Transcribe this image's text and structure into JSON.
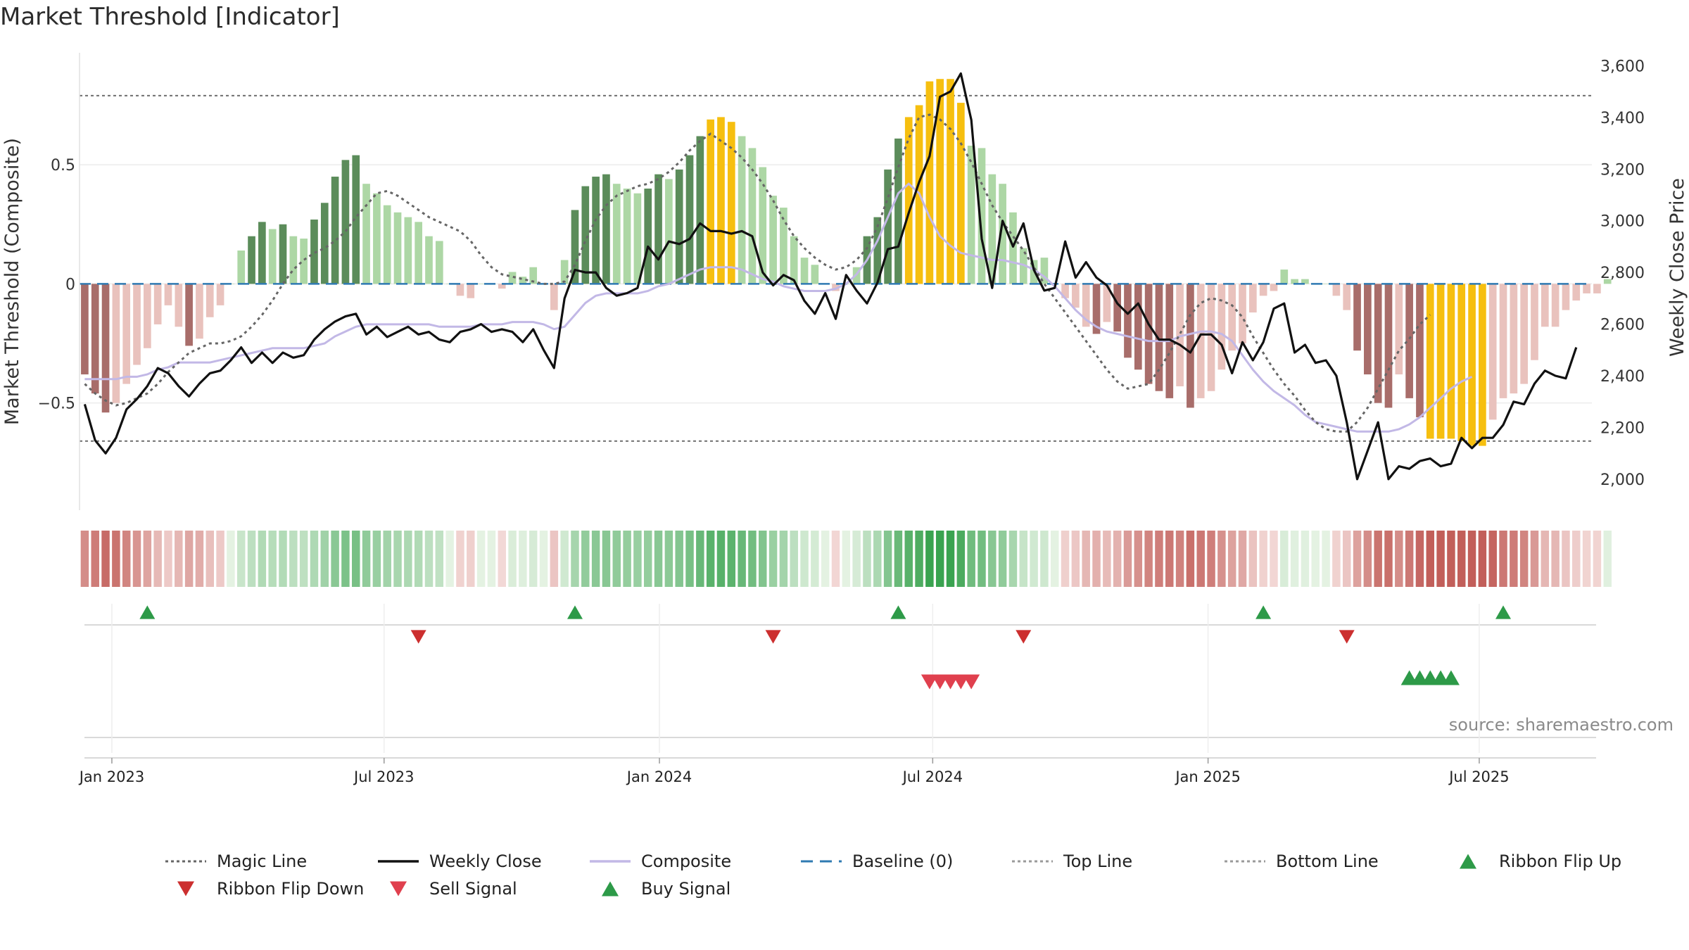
{
  "chart_data": {
    "type": "bar",
    "title": "Market Threshold [Indicator]",
    "ylabel_left": "Market Threshold (Composite)",
    "ylabel_right": "Weekly Close Price",
    "source": "source: sharemaestro.com",
    "xlim_weeks": [
      0.5,
      145.5
    ],
    "ylim_left": [
      -0.95,
      0.97
    ],
    "ylim_right": [
      1880,
      3650
    ],
    "y_left_ticks": [
      {
        "v": 0.5,
        "label": "0.5"
      },
      {
        "v": 0,
        "label": "0"
      },
      {
        "v": -0.5,
        "label": "−0.5"
      }
    ],
    "y_right_ticks": [
      {
        "v": 3600,
        "label": "3,600"
      },
      {
        "v": 3400,
        "label": "3,400"
      },
      {
        "v": 3200,
        "label": "3,200"
      },
      {
        "v": 3000,
        "label": "3,000"
      },
      {
        "v": 2800,
        "label": "2,800"
      },
      {
        "v": 2600,
        "label": "2,600"
      },
      {
        "v": 2400,
        "label": "2,400"
      },
      {
        "v": 2200,
        "label": "2,200"
      },
      {
        "v": 2000,
        "label": "2,000"
      }
    ],
    "x_ticks": [
      {
        "w": 3.6,
        "label": "Jan 2023"
      },
      {
        "w": 29.7,
        "label": "Jul 2023"
      },
      {
        "w": 56.1,
        "label": "Jan 2024"
      },
      {
        "w": 82.3,
        "label": "Jul 2024"
      },
      {
        "w": 108.7,
        "label": "Jan 2025"
      },
      {
        "w": 134.7,
        "label": "Jul 2025"
      }
    ],
    "top_line": 0.79,
    "bottom_line": -0.66,
    "baseline": 0,
    "composite": [
      -0.4,
      -0.4,
      -0.4,
      -0.4,
      -0.39,
      -0.39,
      -0.38,
      -0.36,
      -0.35,
      -0.33,
      -0.33,
      -0.33,
      -0.33,
      -0.32,
      -0.31,
      -0.3,
      -0.29,
      -0.28,
      -0.27,
      -0.27,
      -0.27,
      -0.27,
      -0.26,
      -0.25,
      -0.22,
      -0.2,
      -0.18,
      -0.17,
      -0.17,
      -0.17,
      -0.17,
      -0.17,
      -0.17,
      -0.17,
      -0.18,
      -0.18,
      -0.18,
      -0.18,
      -0.17,
      -0.17,
      -0.17,
      -0.16,
      -0.16,
      -0.16,
      -0.17,
      -0.19,
      -0.18,
      -0.13,
      -0.08,
      -0.05,
      -0.04,
      -0.04,
      -0.04,
      -0.04,
      -0.03,
      -0.01,
      0.0,
      0.02,
      0.04,
      0.06,
      0.07,
      0.07,
      0.07,
      0.06,
      0.04,
      0.02,
      0.01,
      -0.01,
      -0.02,
      -0.03,
      -0.03,
      -0.03,
      -0.02,
      0.0,
      0.04,
      0.1,
      0.18,
      0.28,
      0.38,
      0.42,
      0.38,
      0.28,
      0.2,
      0.16,
      0.13,
      0.12,
      0.11,
      0.1,
      0.1,
      0.09,
      0.08,
      0.06,
      0.03,
      -0.01,
      -0.06,
      -0.11,
      -0.15,
      -0.18,
      -0.2,
      -0.21,
      -0.22,
      -0.23,
      -0.24,
      -0.24,
      -0.24,
      -0.22,
      -0.21,
      -0.2,
      -0.2,
      -0.21,
      -0.24,
      -0.3,
      -0.36,
      -0.41,
      -0.45,
      -0.48,
      -0.51,
      -0.55,
      -0.58,
      -0.59,
      -0.6,
      -0.61,
      -0.62,
      -0.62,
      -0.62,
      -0.62,
      -0.61,
      -0.59,
      -0.56,
      -0.52,
      -0.48,
      -0.44,
      -0.41,
      -0.39
    ],
    "magic_line": [
      -0.42,
      -0.46,
      -0.49,
      -0.51,
      -0.5,
      -0.48,
      -0.46,
      -0.42,
      -0.37,
      -0.33,
      -0.29,
      -0.27,
      -0.25,
      -0.25,
      -0.24,
      -0.22,
      -0.18,
      -0.13,
      -0.07,
      0.0,
      0.06,
      0.1,
      0.13,
      0.15,
      0.18,
      0.22,
      0.28,
      0.33,
      0.38,
      0.39,
      0.37,
      0.34,
      0.31,
      0.28,
      0.26,
      0.24,
      0.22,
      0.18,
      0.12,
      0.07,
      0.04,
      0.03,
      0.02,
      0.01,
      0.0,
      0.0,
      0.01,
      0.08,
      0.18,
      0.27,
      0.33,
      0.37,
      0.39,
      0.41,
      0.42,
      0.44,
      0.47,
      0.51,
      0.56,
      0.6,
      0.63,
      0.6,
      0.57,
      0.53,
      0.48,
      0.42,
      0.35,
      0.27,
      0.2,
      0.15,
      0.11,
      0.08,
      0.06,
      0.07,
      0.1,
      0.15,
      0.24,
      0.36,
      0.49,
      0.61,
      0.7,
      0.71,
      0.69,
      0.65,
      0.59,
      0.51,
      0.42,
      0.33,
      0.26,
      0.2,
      0.14,
      0.07,
      0.0,
      -0.06,
      -0.12,
      -0.18,
      -0.24,
      -0.3,
      -0.36,
      -0.41,
      -0.44,
      -0.43,
      -0.42,
      -0.36,
      -0.29,
      -0.21,
      -0.13,
      -0.08,
      -0.06,
      -0.07,
      -0.09,
      -0.14,
      -0.22,
      -0.29,
      -0.36,
      -0.42,
      -0.47,
      -0.53,
      -0.58,
      -0.61,
      -0.62,
      -0.62,
      -0.58,
      -0.52,
      -0.44,
      -0.36,
      -0.28,
      -0.23,
      -0.17,
      -0.13
    ],
    "weekly_close": [
      2290,
      2150,
      2100,
      2160,
      2270,
      2310,
      2360,
      2430,
      2410,
      2360,
      2320,
      2370,
      2410,
      2420,
      2460,
      2510,
      2450,
      2490,
      2450,
      2490,
      2470,
      2480,
      2540,
      2580,
      2610,
      2630,
      2640,
      2560,
      2590,
      2550,
      2570,
      2590,
      2560,
      2570,
      2540,
      2530,
      2570,
      2580,
      2600,
      2570,
      2580,
      2570,
      2530,
      2580,
      2500,
      2430,
      2700,
      2810,
      2800,
      2800,
      2740,
      2710,
      2720,
      2740,
      2900,
      2850,
      2920,
      2910,
      2930,
      2990,
      2960,
      2960,
      2950,
      2960,
      2940,
      2800,
      2750,
      2790,
      2770,
      2690,
      2640,
      2720,
      2620,
      2790,
      2730,
      2680,
      2760,
      2890,
      2900,
      3030,
      3150,
      3250,
      3480,
      3500,
      3570,
      3390,
      2930,
      2740,
      3000,
      2900,
      2990,
      2810,
      2730,
      2740,
      2920,
      2780,
      2840,
      2780,
      2750,
      2680,
      2640,
      2680,
      2600,
      2540,
      2540,
      2520,
      2490,
      2560,
      2560,
      2520,
      2410,
      2530,
      2460,
      2530,
      2660,
      2680,
      2490,
      2520,
      2450,
      2460,
      2400,
      2220,
      2000,
      2110,
      2220,
      2000,
      2050,
      2040,
      2070,
      2080,
      2050,
      2060,
      2160,
      2120,
      2160,
      2160,
      2210,
      2300,
      2290,
      2370,
      2420,
      2400,
      2390,
      2510
    ],
    "composite_bars": [
      -0.38,
      -0.46,
      -0.54,
      -0.5,
      -0.42,
      -0.34,
      -0.27,
      -0.17,
      -0.09,
      -0.18,
      -0.26,
      -0.23,
      -0.14,
      -0.09,
      0.0,
      0.14,
      0.2,
      0.26,
      0.23,
      0.25,
      0.2,
      0.19,
      0.27,
      0.34,
      0.45,
      0.52,
      0.54,
      0.42,
      0.38,
      0.33,
      0.3,
      0.28,
      0.26,
      0.2,
      0.18,
      0.0,
      -0.05,
      -0.06,
      0.0,
      0.0,
      -0.02,
      0.05,
      0.03,
      0.07,
      0.0,
      -0.11,
      0.1,
      0.31,
      0.41,
      0.45,
      0.46,
      0.42,
      0.4,
      0.38,
      0.4,
      0.46,
      0.44,
      0.48,
      0.54,
      0.62,
      0.69,
      0.7,
      0.68,
      0.62,
      0.57,
      0.49,
      0.37,
      0.32,
      0.2,
      0.11,
      0.08,
      0.0,
      -0.03,
      0.0,
      0.07,
      0.2,
      0.28,
      0.48,
      0.61,
      0.7,
      0.75,
      0.85,
      0.86,
      0.86,
      0.76,
      0.58,
      0.57,
      0.46,
      0.42,
      0.3,
      0.15,
      0.1,
      0.11,
      0.0,
      -0.06,
      -0.1,
      -0.18,
      -0.21,
      -0.16,
      -0.2,
      -0.31,
      -0.36,
      -0.42,
      -0.45,
      -0.48,
      -0.43,
      -0.52,
      -0.48,
      -0.45,
      -0.36,
      -0.28,
      -0.25,
      -0.12,
      -0.05,
      -0.03,
      0.06,
      0.02,
      0.02,
      0.0,
      0.0,
      -0.05,
      -0.11,
      -0.28,
      -0.38,
      -0.5,
      -0.52,
      -0.38,
      -0.48,
      -0.56,
      -0.65,
      -0.65,
      -0.65,
      -0.66,
      -0.68,
      -0.68,
      -0.57,
      -0.48,
      -0.46,
      -0.42,
      -0.32,
      -0.18,
      -0.18,
      -0.11,
      -0.07,
      -0.04,
      -0.04,
      0.02
    ],
    "ribbon_flip_up": [
      7,
      48,
      79,
      114,
      137
    ],
    "ribbon_flip_down": [
      33,
      67,
      91,
      122
    ],
    "sell_signal": [
      82,
      83,
      84,
      85,
      86
    ],
    "buy_signal": [
      128,
      129,
      130,
      131,
      132
    ],
    "legend": [
      "Magic Line",
      "Weekly Close",
      "Composite",
      "Baseline (0)",
      "Top Line",
      "Bottom Line",
      "Ribbon Flip Up",
      "Ribbon Flip Down",
      "Sell Signal",
      "Buy Signal"
    ],
    "colors": {
      "bar_strong_pos": "#5b8c5a",
      "bar_weak_pos": "#add7a5",
      "bar_strong_neg": "#a86d6a",
      "bar_weak_neg": "#e9c2bd",
      "bar_extreme": "#f6bf0f",
      "weekly_close": "#111111",
      "composite": "#c2b8e6",
      "magic_line": "#666666",
      "baseline": "#2f7ab2",
      "threshold": "#777777",
      "ribbon_flip_up": "#2d9a48",
      "ribbon_flip_down": "#cc2f2f",
      "sell_signal": "#e0404e",
      "buy_signal": "#2d9a48"
    }
  }
}
